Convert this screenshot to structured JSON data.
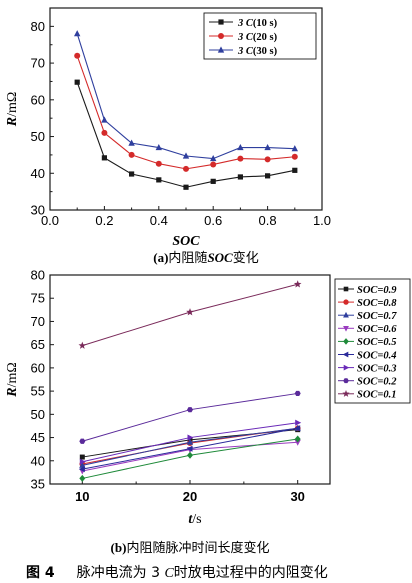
{
  "chart_data": [
    {
      "type": "line",
      "panel": "a",
      "ylabel": "R/mΩ",
      "xlabel": "SOC",
      "xlim": [
        0.0,
        1.0
      ],
      "ylim": [
        30,
        85
      ],
      "xticks": [
        "0.0",
        "0.2",
        "0.4",
        "0.6",
        "0.8",
        "1.0"
      ],
      "yticks": [
        "30",
        "40",
        "50",
        "60",
        "70",
        "80"
      ],
      "x": [
        0.1,
        0.2,
        0.3,
        0.4,
        0.5,
        0.6,
        0.7,
        0.8,
        0.9
      ],
      "legend_position": "top-right",
      "caption_parts": [
        "(a)",
        "内阻随",
        "SOC",
        "变化"
      ],
      "series": [
        {
          "name": "3 C(10 s)",
          "name_num": "3 ",
          "name_c": "C",
          "name_rest": "(10 s)",
          "color": "#1a1a1a",
          "marker": "square",
          "values": [
            64.8,
            44.2,
            39.8,
            38.2,
            36.2,
            37.8,
            39.0,
            39.3,
            40.8
          ]
        },
        {
          "name": "3 C(20 s)",
          "name_num": "3 ",
          "name_c": "C",
          "name_rest": "(20 s)",
          "color": "#d42a2a",
          "marker": "circle",
          "values": [
            72.0,
            51.0,
            45.0,
            42.6,
            41.2,
            42.4,
            44.0,
            43.8,
            44.5
          ]
        },
        {
          "name": "3 C(30 s)",
          "name_num": "3 ",
          "name_c": "C",
          "name_rest": "(30 s)",
          "color": "#2f3f9e",
          "marker": "triangle",
          "values": [
            78.0,
            54.5,
            48.2,
            47.0,
            44.7,
            44.0,
            47.0,
            47.0,
            46.7
          ]
        }
      ]
    },
    {
      "type": "line",
      "panel": "b",
      "ylabel": "R/mΩ",
      "xlabel": "t/s",
      "xlim": [
        7,
        33
      ],
      "ylim": [
        35,
        80
      ],
      "xticks": [
        "10",
        "20",
        "30"
      ],
      "yticks": [
        "35",
        "40",
        "45",
        "50",
        "55",
        "60",
        "65",
        "70",
        "75",
        "80"
      ],
      "x": [
        10,
        20,
        30
      ],
      "legend_position": "right",
      "caption_parts": [
        "(b)",
        "内阻随脉冲时间长度变化"
      ],
      "series": [
        {
          "name": "SOC=0.9",
          "color": "#1a1a1a",
          "marker": "square",
          "values": [
            40.8,
            44.5,
            46.7
          ]
        },
        {
          "name": "SOC=0.8",
          "color": "#d42a2a",
          "marker": "circle",
          "values": [
            39.3,
            43.8,
            47.0
          ]
        },
        {
          "name": "SOC=0.7",
          "color": "#2f3f9e",
          "marker": "triangle",
          "values": [
            39.0,
            44.0,
            47.0
          ]
        },
        {
          "name": "SOC=0.6",
          "color": "#9a3bbf",
          "marker": "triangle-down",
          "values": [
            37.8,
            42.4,
            44.0
          ]
        },
        {
          "name": "SOC=0.5",
          "color": "#1f8a3a",
          "marker": "diamond",
          "values": [
            36.2,
            41.2,
            44.7
          ]
        },
        {
          "name": "SOC=0.4",
          "color": "#2a2a9a",
          "marker": "triangle-left",
          "values": [
            38.2,
            42.6,
            47.0
          ]
        },
        {
          "name": "SOC=0.3",
          "color": "#6a2ab8",
          "marker": "triangle-right",
          "values": [
            39.8,
            45.0,
            48.2
          ]
        },
        {
          "name": "SOC=0.2",
          "color": "#5a2a9a",
          "marker": "hexagon",
          "values": [
            44.2,
            51.0,
            54.5
          ]
        },
        {
          "name": "SOC=0.1",
          "color": "#7a2a5a",
          "marker": "star",
          "values": [
            64.8,
            72.0,
            78.0
          ]
        }
      ]
    }
  ],
  "figure_caption": {
    "number": "图 4",
    "text_before": "脉冲电流为 3 ",
    "c": "C",
    "text_after": "时放电过程中的内阻变化"
  }
}
